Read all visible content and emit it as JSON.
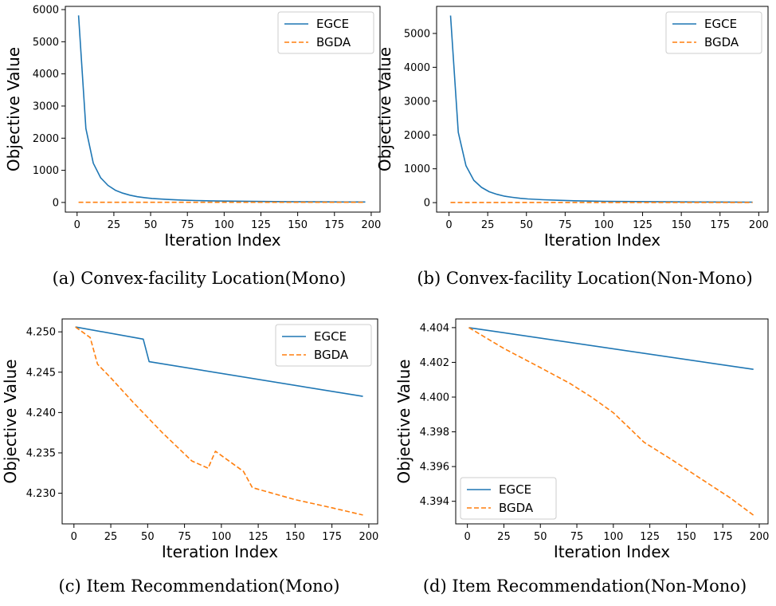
{
  "figure": {
    "captions": [
      "(a) Convex-facility Location(Mono)",
      "(b) Convex-facility Location(Non-Mono)",
      "(c) Item Recommendation(Mono)",
      "(d) Item Recommendation(Non-Mono)"
    ]
  },
  "colors": {
    "EGCE": "#1f77b4",
    "BGDA": "#ff7f0e"
  },
  "chart_data": [
    {
      "type": "line",
      "xlabel": "Iteration Index",
      "ylabel": "Objective Value",
      "xlim": [
        -8,
        206
      ],
      "ylim": [
        -300,
        6100
      ],
      "xticks": [
        0,
        25,
        50,
        75,
        100,
        125,
        150,
        175,
        200
      ],
      "yticks": [
        0,
        1000,
        2000,
        3000,
        4000,
        5000,
        6000
      ],
      "ytick_labels": [
        "0",
        "1000",
        "2000",
        "3000",
        "4000",
        "5000",
        "6000"
      ],
      "legend_position": "upper right",
      "series": [
        {
          "name": "EGCE",
          "style": "solid",
          "x": [
            1,
            6,
            11,
            16,
            21,
            26,
            31,
            36,
            41,
            46,
            51,
            61,
            71,
            81,
            91,
            101,
            121,
            141,
            161,
            181,
            196
          ],
          "y": [
            5820,
            2300,
            1220,
            770,
            530,
            380,
            290,
            225,
            180,
            148,
            125,
            95,
            75,
            60,
            50,
            42,
            32,
            25,
            20,
            16,
            14
          ]
        },
        {
          "name": "BGDA",
          "style": "dashed",
          "x": [
            1,
            11,
            21,
            51,
            101,
            151,
            196
          ],
          "y": [
            4,
            5,
            5,
            5,
            5,
            5,
            5
          ]
        }
      ]
    },
    {
      "type": "line",
      "xlabel": "Iteration Index",
      "ylabel": "Objective Value",
      "xlim": [
        -8,
        206
      ],
      "ylim": [
        -280,
        5800
      ],
      "xticks": [
        0,
        25,
        50,
        75,
        100,
        125,
        150,
        175,
        200
      ],
      "yticks": [
        0,
        1000,
        2000,
        3000,
        4000,
        5000
      ],
      "ytick_labels": [
        "0",
        "1000",
        "2000",
        "3000",
        "4000",
        "5000"
      ],
      "legend_position": "upper right",
      "series": [
        {
          "name": "EGCE",
          "style": "solid",
          "x": [
            1,
            6,
            11,
            16,
            21,
            26,
            31,
            36,
            41,
            46,
            51,
            61,
            71,
            81,
            91,
            101,
            121,
            141,
            161,
            181,
            196
          ],
          "y": [
            5530,
            2080,
            1090,
            660,
            450,
            320,
            245,
            190,
            155,
            128,
            110,
            85,
            68,
            55,
            46,
            39,
            30,
            24,
            19,
            16,
            14
          ]
        },
        {
          "name": "BGDA",
          "style": "dashed",
          "x": [
            1,
            11,
            21,
            51,
            101,
            151,
            196
          ],
          "y": [
            4,
            5,
            5,
            5,
            5,
            5,
            5
          ]
        }
      ]
    },
    {
      "type": "line",
      "xlabel": "Iteration Index",
      "ylabel": "Objective Value",
      "xlim": [
        -8,
        206
      ],
      "ylim": [
        4.2262,
        4.2516
      ],
      "xticks": [
        0,
        25,
        50,
        75,
        100,
        125,
        150,
        175,
        200
      ],
      "yticks": [
        4.23,
        4.235,
        4.24,
        4.245,
        4.25
      ],
      "ytick_labels": [
        "4.230",
        "4.235",
        "4.240",
        "4.245",
        "4.250"
      ],
      "legend_position": "upper right",
      "series": [
        {
          "name": "EGCE",
          "style": "solid",
          "x": [
            1,
            47,
            51,
            196
          ],
          "y": [
            4.2506,
            4.2491,
            4.2463,
            4.242
          ]
        },
        {
          "name": "BGDA",
          "style": "dashed",
          "x": [
            1,
            11,
            16,
            25,
            40,
            60,
            80,
            91,
            96,
            115,
            121,
            150,
            175,
            196
          ],
          "y": [
            4.2506,
            4.2493,
            4.246,
            4.2443,
            4.2413,
            4.2375,
            4.234,
            4.2331,
            4.2352,
            4.2327,
            4.2307,
            4.2292,
            4.2282,
            4.2273
          ]
        }
      ]
    },
    {
      "type": "line",
      "xlabel": "Iteration Index",
      "ylabel": "Objective Value",
      "xlim": [
        -8,
        206
      ],
      "ylim": [
        4.3927,
        4.4045
      ],
      "xticks": [
        0,
        25,
        50,
        75,
        100,
        125,
        150,
        175,
        200
      ],
      "yticks": [
        4.394,
        4.396,
        4.398,
        4.4,
        4.402,
        4.404
      ],
      "ytick_labels": [
        "4.394",
        "4.396",
        "4.398",
        "4.400",
        "4.402",
        "4.404"
      ],
      "legend_position": "lower left",
      "series": [
        {
          "name": "EGCE",
          "style": "solid",
          "x": [
            1,
            196
          ],
          "y": [
            4.404,
            4.4016
          ]
        },
        {
          "name": "BGDA",
          "style": "dashed",
          "x": [
            1,
            25,
            50,
            70,
            85,
            100,
            110,
            121,
            140,
            160,
            180,
            196
          ],
          "y": [
            4.404,
            4.4028,
            4.4017,
            4.4008,
            4.4,
            4.3991,
            4.3983,
            4.3974,
            4.3964,
            4.3953,
            4.3942,
            4.3932
          ]
        }
      ]
    }
  ]
}
